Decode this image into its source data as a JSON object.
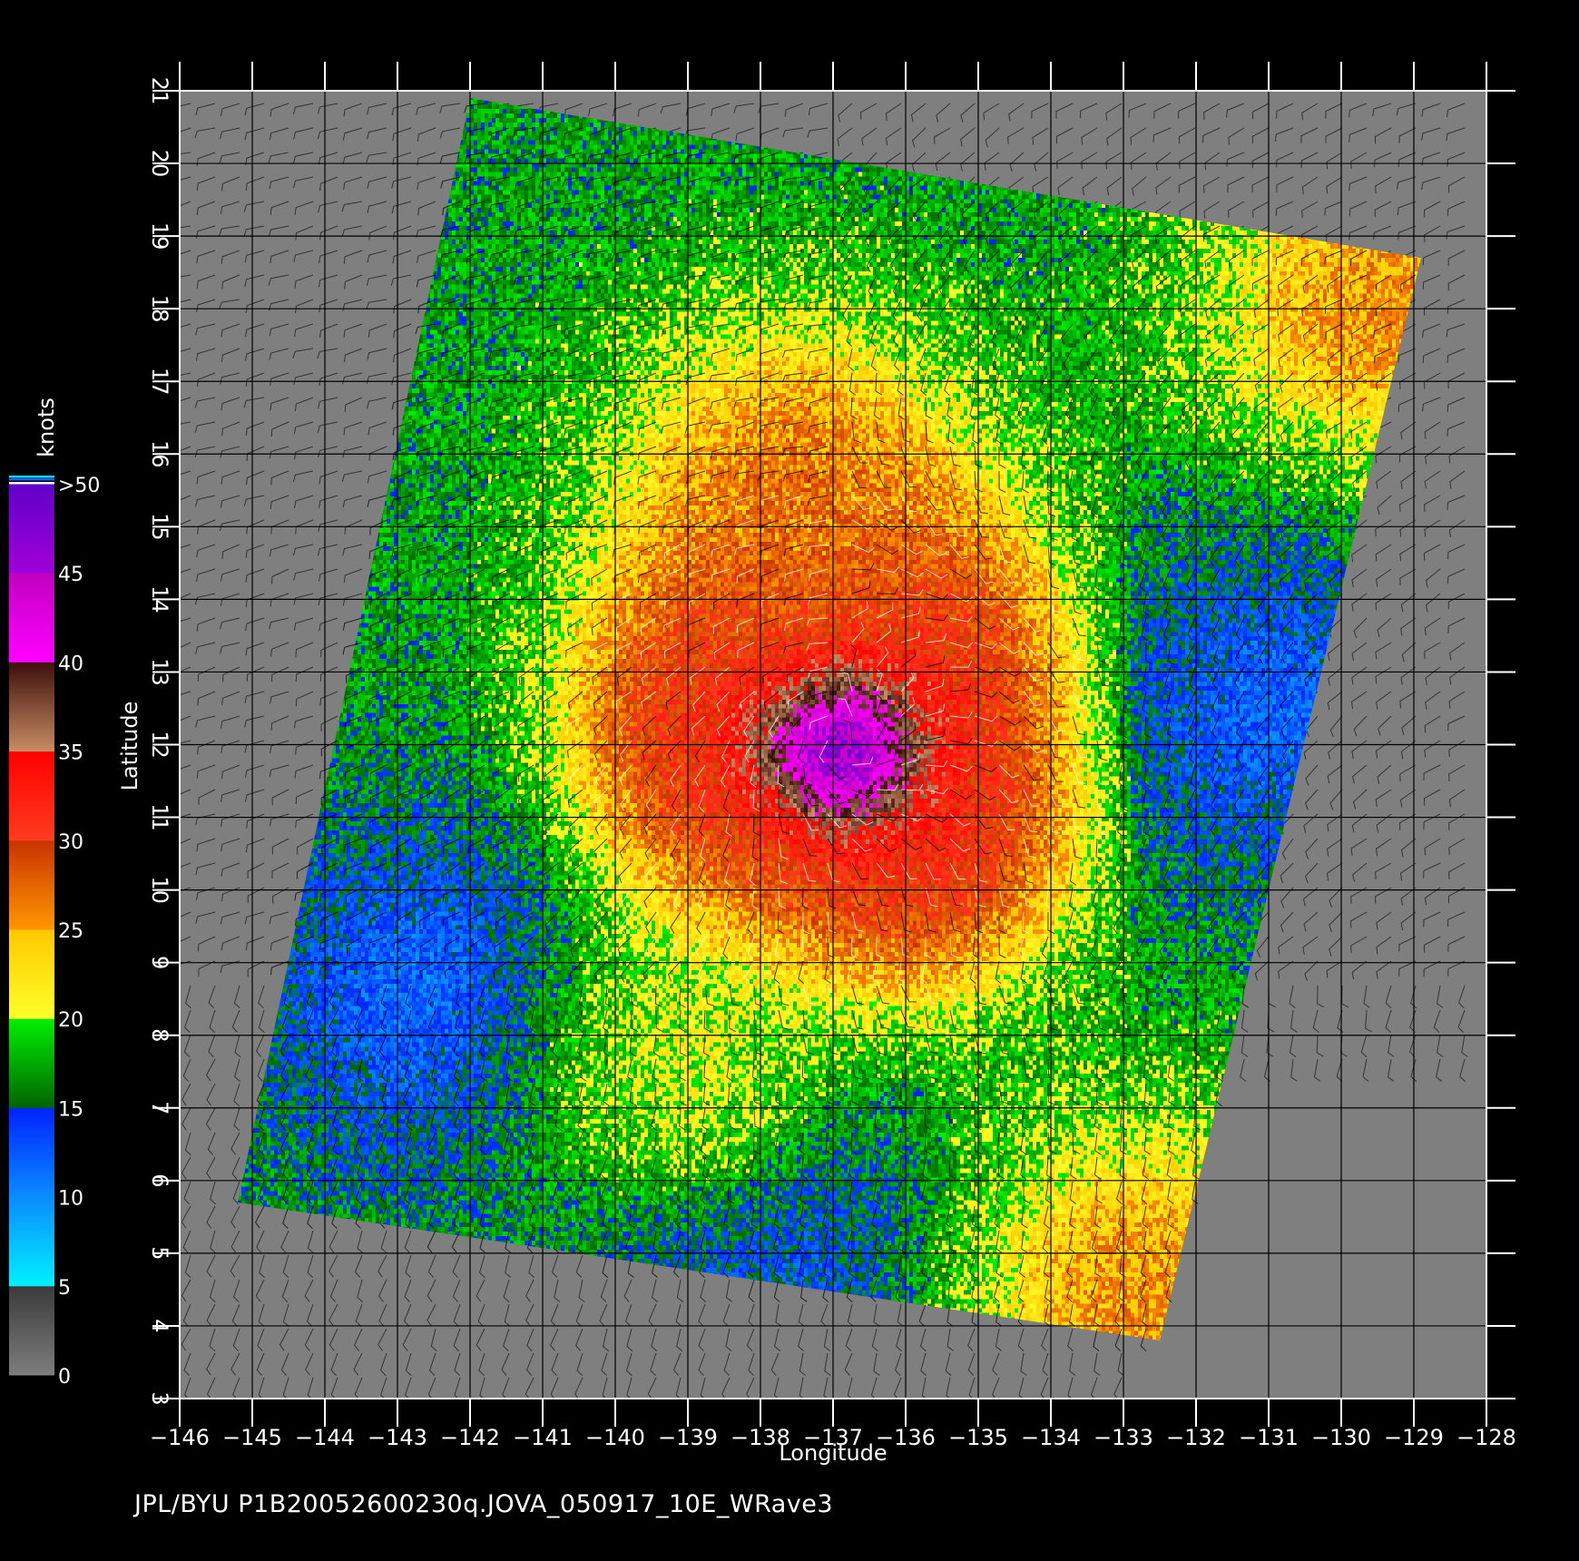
{
  "chart_data": {
    "type": "heatmap",
    "xlabel": "Longitude",
    "ylabel": "Latitude",
    "xlim": [
      -146,
      -128
    ],
    "ylim": [
      3,
      21
    ],
    "x_ticks": [
      "−146",
      "−145",
      "−144",
      "−143",
      "−142",
      "−141",
      "−140",
      "−139",
      "−138",
      "−137",
      "−136",
      "−135",
      "−134",
      "−133",
      "−132",
      "−131",
      "−130",
      "−129",
      "−128"
    ],
    "y_ticks": [
      "3",
      "4",
      "5",
      "6",
      "7",
      "8",
      "9",
      "10",
      "11",
      "12",
      "13",
      "14",
      "15",
      "16",
      "17",
      "18",
      "19",
      "20",
      "21"
    ],
    "grid": true,
    "colorbar": {
      "title": "knots",
      "labels": [
        "0",
        "5",
        "10",
        "15",
        "20",
        "25",
        "30",
        "35",
        "40",
        "45",
        ">50"
      ],
      "bins": [
        {
          "from": 0,
          "to": 5,
          "top": "#3a3a3a",
          "bottom": "#7d7d7d"
        },
        {
          "from": 5,
          "to": 10,
          "top": "#0a8cff",
          "bottom": "#00f0ff"
        },
        {
          "from": 10,
          "to": 15,
          "top": "#0022ff",
          "bottom": "#0a8cff"
        },
        {
          "from": 15,
          "to": 20,
          "top": "#00f000",
          "bottom": "#006400"
        },
        {
          "from": 20,
          "to": 25,
          "top": "#ffc800",
          "bottom": "#ffff28"
        },
        {
          "from": 25,
          "to": 30,
          "top": "#c83200",
          "bottom": "#ff9600"
        },
        {
          "from": 30,
          "to": 35,
          "top": "#ff0000",
          "bottom": "#ff3c1e"
        },
        {
          "from": 35,
          "to": 40,
          "top": "#3c0f0a",
          "bottom": "#c88c64"
        },
        {
          "from": 40,
          "to": 45,
          "top": "#c000c0",
          "bottom": "#ff00ff"
        },
        {
          "from": 45,
          "to": 50,
          "top": "#6000c8",
          "bottom": "#a000d8"
        }
      ]
    },
    "swath_corners_lonlat": [
      [
        -142,
        20.9
      ],
      [
        -128.9,
        18.7
      ],
      [
        -132.5,
        3.8
      ],
      [
        -145.2,
        5.7
      ]
    ],
    "wind_field": {
      "background_speed_knots": 17,
      "storm_center": {
        "lon": -136.9,
        "lat": 12.0
      },
      "storm_max_knots": 47,
      "regions": [
        {
          "name": "north orange band",
          "lon": -137.5,
          "lat": 15.5,
          "knots": 27
        },
        {
          "name": "northeast orange corner",
          "lon": -129.5,
          "lat": 18.0,
          "knots": 26
        },
        {
          "name": "southwest low-wind area",
          "lon": -142.5,
          "lat": 8.5,
          "knots": 11
        },
        {
          "name": "south low-wind area",
          "lon": -138.0,
          "lat": 5.5,
          "knots": 11
        },
        {
          "name": "east blue patch",
          "lon": -131.0,
          "lat": 12.5,
          "knots": 12
        },
        {
          "name": "south yellow tongue",
          "lon": -139.0,
          "lat": 7.5,
          "knots": 21
        },
        {
          "name": "southeast orange strip",
          "lon": -132.8,
          "lat": 4.5,
          "knots": 26
        }
      ]
    }
  },
  "footer": "JPL/BYU  P1B20052600230q.JOVA_050917_10E_WRave3"
}
